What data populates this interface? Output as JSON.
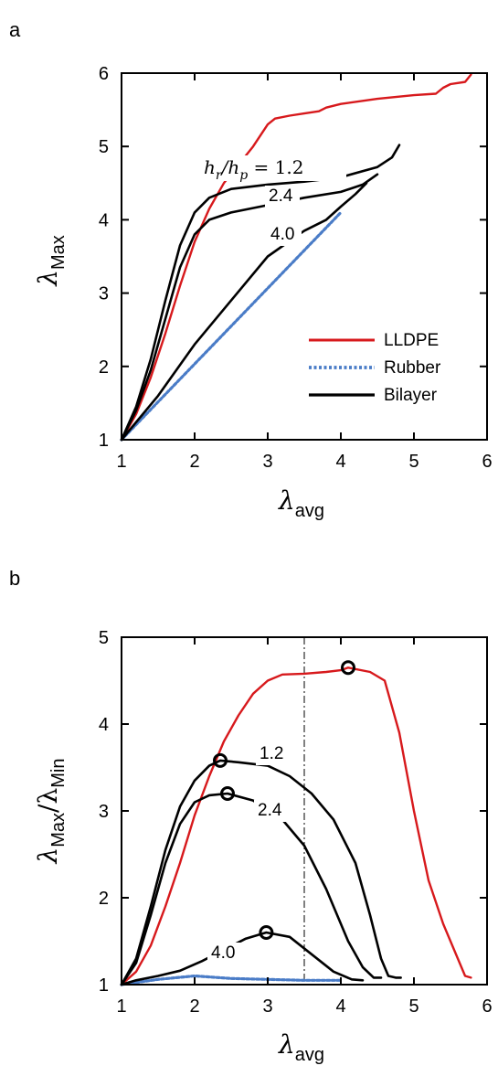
{
  "colors": {
    "lldpe": "#d7191c",
    "rubber": "#4a7cc7",
    "bilayer": "#000000"
  },
  "chart_data": [
    {
      "panel": "a",
      "type": "line",
      "xlabel": "λ",
      "xlabel_sub": "avg",
      "ylabel": "λ",
      "ylabel_sub": "Max",
      "xlim": [
        1,
        6
      ],
      "ylim": [
        1,
        6
      ],
      "xticks": [
        "1",
        "2",
        "3",
        "4",
        "5",
        "6"
      ],
      "yticks": [
        "1",
        "2",
        "3",
        "4",
        "5",
        "6"
      ],
      "legend": {
        "placement": "bottom-right",
        "entries": [
          {
            "name": "LLDPE",
            "style": "lldpe"
          },
          {
            "name": "Rubber",
            "style": "rubber"
          },
          {
            "name": "Bilayer",
            "style": "bilayer"
          }
        ]
      },
      "series": [
        {
          "name": "LLDPE",
          "style": "lldpe",
          "x": [
            1,
            1.2,
            1.4,
            1.6,
            1.8,
            2.0,
            2.2,
            2.4,
            2.6,
            2.8,
            3.0,
            3.1,
            3.3,
            3.5,
            3.7,
            3.8,
            4.0,
            4.5,
            5.0,
            5.3,
            5.4,
            5.5,
            5.7,
            5.78
          ],
          "y": [
            1,
            1.35,
            1.85,
            2.45,
            3.1,
            3.7,
            4.15,
            4.5,
            4.75,
            5.0,
            5.3,
            5.38,
            5.42,
            5.45,
            5.48,
            5.53,
            5.58,
            5.65,
            5.7,
            5.72,
            5.8,
            5.85,
            5.88,
            5.98
          ]
        },
        {
          "name": "Rubber",
          "style": "rubber",
          "x": [
            1,
            4
          ],
          "y": [
            1,
            4.1
          ]
        },
        {
          "name": "Bilayer",
          "label": "1.2",
          "style": "bilayer",
          "x": [
            1,
            1.2,
            1.4,
            1.6,
            1.8,
            2.0,
            2.2,
            2.5,
            3.0,
            3.5,
            4.0,
            4.5,
            4.7,
            4.8
          ],
          "y": [
            1,
            1.45,
            2.1,
            2.9,
            3.65,
            4.1,
            4.3,
            4.42,
            4.48,
            4.52,
            4.58,
            4.72,
            4.85,
            5.02
          ]
        },
        {
          "name": "Bilayer",
          "label": "2.4",
          "style": "bilayer",
          "x": [
            1,
            1.2,
            1.4,
            1.6,
            1.8,
            2.0,
            2.2,
            2.5,
            3.0,
            3.5,
            4.0,
            4.3,
            4.5
          ],
          "y": [
            1,
            1.4,
            1.95,
            2.65,
            3.35,
            3.8,
            4.0,
            4.1,
            4.2,
            4.3,
            4.38,
            4.48,
            4.62
          ]
        },
        {
          "name": "Bilayer",
          "label": "4.0",
          "style": "bilayer",
          "x": [
            1,
            1.5,
            2.0,
            2.5,
            3.0,
            3.5,
            3.8,
            4.0,
            4.2,
            4.35
          ],
          "y": [
            1,
            1.6,
            2.3,
            2.9,
            3.5,
            3.85,
            4.0,
            4.18,
            4.35,
            4.5
          ]
        }
      ],
      "annotations": [
        {
          "text": "h",
          "sub": "r",
          "text2": "/h",
          "sub2": "p",
          "text3": " = 1.2"
        },
        {
          "text": "2.4"
        },
        {
          "text": "4.0"
        }
      ]
    },
    {
      "panel": "b",
      "type": "line",
      "xlabel": "λ",
      "xlabel_sub": "avg",
      "ylabel": "λ",
      "ylabel_sub": "Max",
      "ylabel_mid": "/λ",
      "ylabel_sub2": "Min",
      "xlim": [
        1,
        6
      ],
      "ylim": [
        1,
        5
      ],
      "xticks": [
        "1",
        "2",
        "3",
        "4",
        "5",
        "6"
      ],
      "yticks": [
        "1",
        "2",
        "3",
        "4",
        "5"
      ],
      "vline_x": 3.5,
      "series": [
        {
          "name": "LLDPE",
          "style": "lldpe",
          "x": [
            1,
            1.2,
            1.4,
            1.6,
            1.8,
            2.0,
            2.2,
            2.4,
            2.6,
            2.8,
            3.0,
            3.2,
            3.5,
            3.8,
            4.0,
            4.1,
            4.4,
            4.6,
            4.8,
            5.0,
            5.2,
            5.4,
            5.6,
            5.7,
            5.78
          ],
          "y": [
            1,
            1.15,
            1.45,
            1.9,
            2.4,
            2.95,
            3.4,
            3.8,
            4.1,
            4.35,
            4.5,
            4.57,
            4.58,
            4.6,
            4.62,
            4.65,
            4.6,
            4.5,
            3.9,
            3.0,
            2.2,
            1.7,
            1.3,
            1.1,
            1.08
          ]
        },
        {
          "name": "Rubber",
          "style": "rubber",
          "x": [
            1,
            1.5,
            2.0,
            2.5,
            3.0,
            3.5,
            4.0
          ],
          "y": [
            1,
            1.06,
            1.1,
            1.07,
            1.06,
            1.05,
            1.05
          ]
        },
        {
          "name": "Bilayer",
          "label": "1.2",
          "style": "bilayer",
          "x": [
            1,
            1.2,
            1.4,
            1.6,
            1.8,
            2.0,
            2.2,
            2.35,
            2.6,
            3.0,
            3.3,
            3.6,
            3.9,
            4.2,
            4.4,
            4.55,
            4.65,
            4.75,
            4.82
          ],
          "y": [
            1,
            1.3,
            1.9,
            2.55,
            3.05,
            3.35,
            3.52,
            3.58,
            3.56,
            3.52,
            3.4,
            3.2,
            2.9,
            2.4,
            1.8,
            1.3,
            1.1,
            1.08,
            1.08
          ]
        },
        {
          "name": "Bilayer",
          "label": "2.4",
          "style": "bilayer",
          "x": [
            1,
            1.2,
            1.4,
            1.6,
            1.8,
            2.0,
            2.2,
            2.45,
            2.8,
            3.2,
            3.5,
            3.8,
            4.1,
            4.3,
            4.45,
            4.55
          ],
          "y": [
            1,
            1.25,
            1.8,
            2.4,
            2.85,
            3.1,
            3.18,
            3.2,
            3.12,
            2.9,
            2.6,
            2.1,
            1.5,
            1.2,
            1.08,
            1.08
          ]
        },
        {
          "name": "Bilayer",
          "label": "4.0",
          "style": "bilayer",
          "x": [
            1,
            1.2,
            1.5,
            1.8,
            2.1,
            2.4,
            2.7,
            2.98,
            3.3,
            3.6,
            3.9,
            4.15,
            4.3
          ],
          "y": [
            1,
            1.05,
            1.1,
            1.16,
            1.27,
            1.4,
            1.53,
            1.6,
            1.55,
            1.35,
            1.15,
            1.06,
            1.05
          ]
        }
      ],
      "markers": [
        {
          "x": 4.1,
          "y": 4.65
        },
        {
          "x": 2.35,
          "y": 3.58
        },
        {
          "x": 2.45,
          "y": 3.2
        },
        {
          "x": 2.98,
          "y": 1.6
        }
      ],
      "annotations": [
        {
          "text": "1.2"
        },
        {
          "text": "2.4"
        },
        {
          "text": "4.0"
        }
      ]
    }
  ]
}
